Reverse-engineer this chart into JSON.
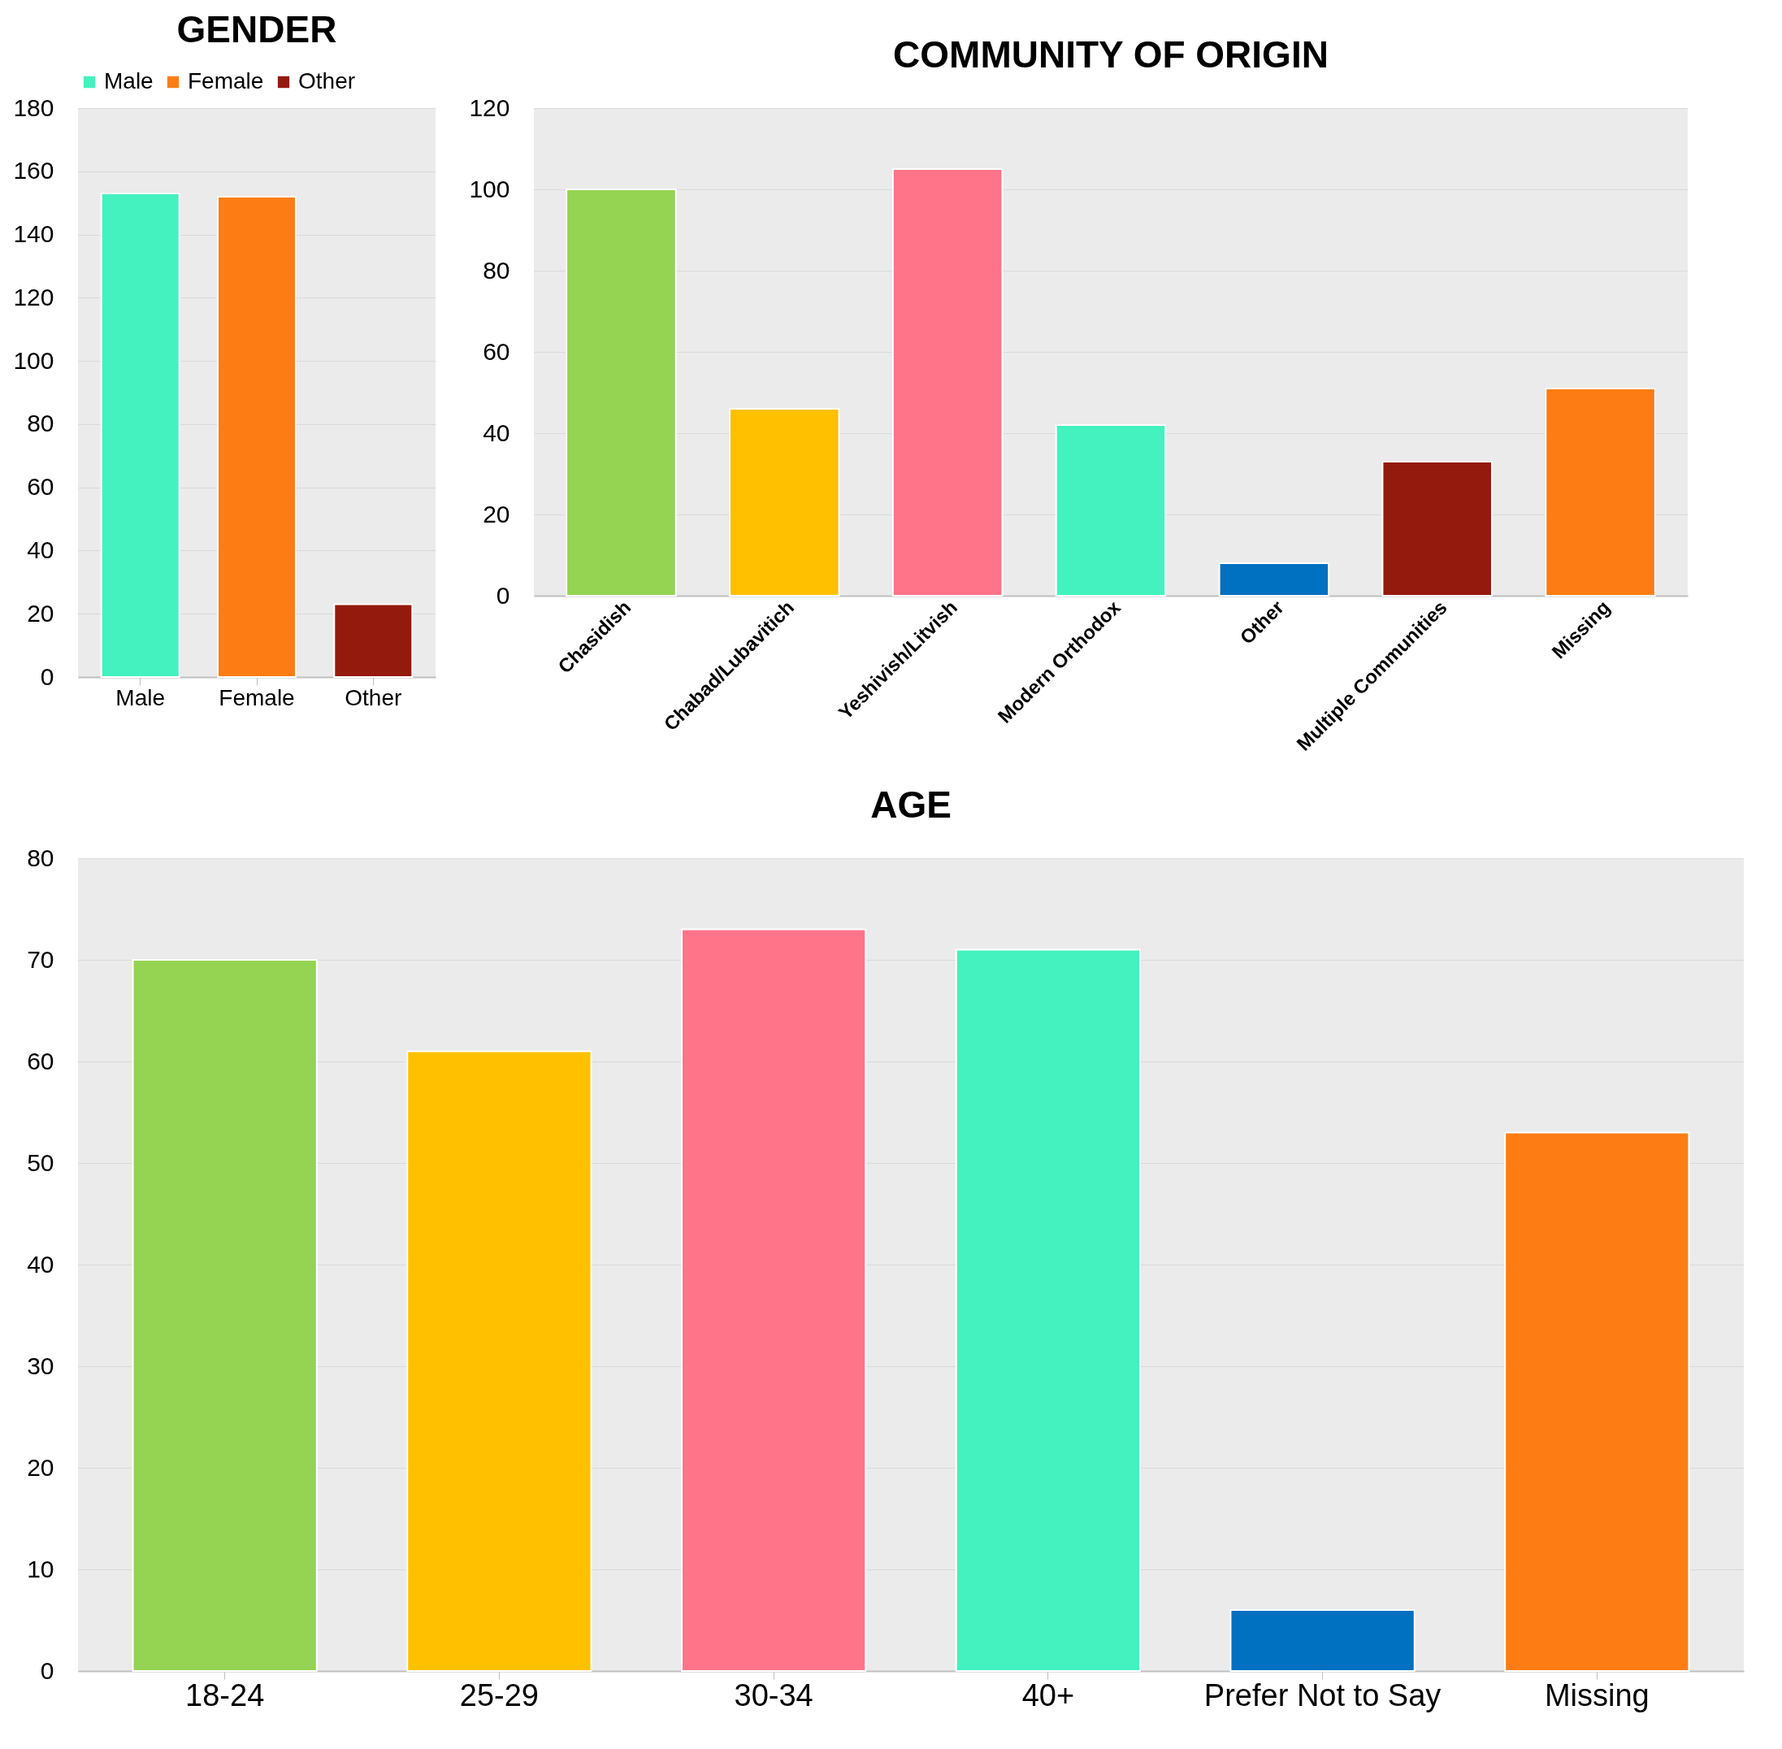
{
  "chart_data": [
    {
      "type": "bar",
      "title": "GENDER",
      "categories": [
        "Male",
        "Female",
        "Other"
      ],
      "stacked": true,
      "series": [
        {
          "name": "Male",
          "color": "#43f2be",
          "values": [
            153,
            null,
            null
          ]
        },
        {
          "name": "Female",
          "color": "#fd7d14",
          "values": [
            null,
            152,
            null
          ]
        },
        {
          "name": "Other",
          "color": "#951a0e",
          "values": [
            null,
            null,
            23
          ]
        }
      ],
      "ylim": [
        0,
        180
      ],
      "yticks": [
        0,
        20,
        40,
        60,
        80,
        100,
        120,
        140,
        160,
        180
      ],
      "grid": "y",
      "legend": "top"
    },
    {
      "type": "bar",
      "title": "COMMUNITY OF ORIGIN",
      "categories": [
        "Chasidish",
        "Chabad/Lubavitich",
        "Yeshivish/Litvish",
        "Modern Orthodox",
        "Other",
        "Multiple Communities",
        "Missing"
      ],
      "values": [
        100,
        46,
        105,
        42,
        8,
        33,
        51
      ],
      "colors": [
        "#95d353",
        "#ffc000",
        "#ff7489",
        "#43f2be",
        "#0070c0",
        "#951a0e",
        "#fd7d14"
      ],
      "ylim": [
        0,
        120
      ],
      "yticks": [
        0,
        20,
        40,
        60,
        80,
        100,
        120
      ],
      "grid": "y"
    },
    {
      "type": "bar",
      "title": "AGE",
      "categories": [
        "18-24",
        "25-29",
        "30-34",
        "40+",
        "Prefer Not to Say",
        "Missing"
      ],
      "values": [
        70,
        61,
        73,
        71,
        6,
        53
      ],
      "colors": [
        "#95d353",
        "#ffc000",
        "#ff7489",
        "#43f2be",
        "#0070c0",
        "#fd7d14"
      ],
      "ylim": [
        0,
        80
      ],
      "yticks": [
        0,
        10,
        20,
        30,
        40,
        50,
        60,
        70,
        80
      ],
      "grid": "y"
    }
  ]
}
